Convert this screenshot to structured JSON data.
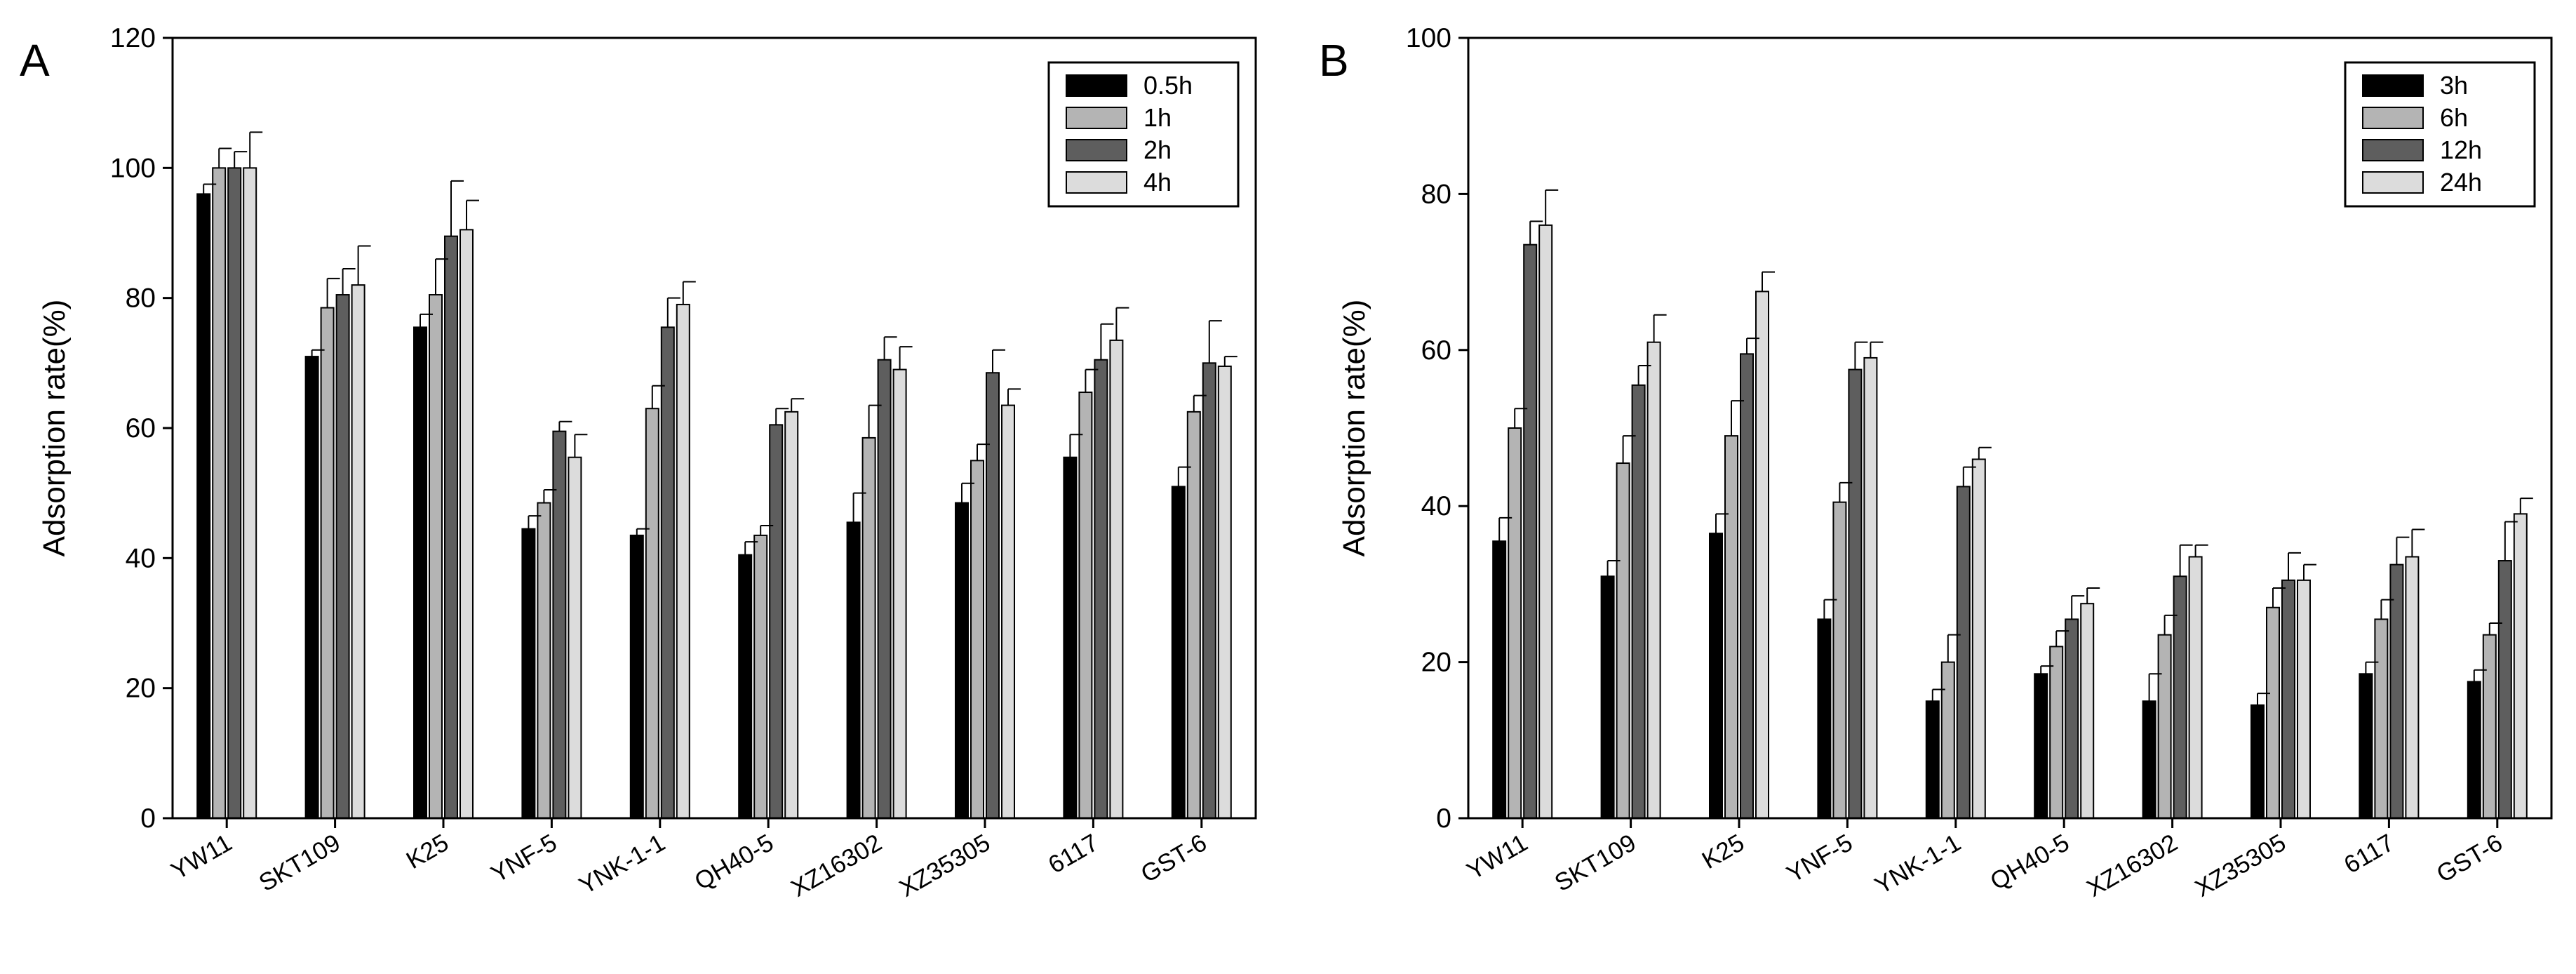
{
  "chart_data": [
    {
      "panel": "A",
      "type": "bar",
      "title": "",
      "xlabel": "",
      "ylabel": "Adsorption rate(%)",
      "ylim": [
        0,
        120
      ],
      "yticks": [
        0,
        20,
        40,
        60,
        80,
        100,
        120
      ],
      "categories": [
        "YW11",
        "SKT109",
        "K25",
        "YNF-5",
        "YNK-1-1",
        "QH40-5",
        "XZ16302",
        "XZ35305",
        "6117",
        "GST-6"
      ],
      "series": [
        {
          "name": "0.5h",
          "color": "#000000",
          "values": [
            96,
            71,
            75.5,
            44.5,
            43.5,
            40.5,
            45.5,
            48.5,
            55.5,
            51
          ],
          "errors": [
            1.5,
            1,
            2,
            2,
            1,
            2,
            4.5,
            3,
            3.5,
            3
          ]
        },
        {
          "name": "1h",
          "color": "#b4b4b4",
          "values": [
            100,
            78.5,
            80.5,
            48.5,
            63,
            43.5,
            58.5,
            55,
            65.5,
            62.5
          ],
          "errors": [
            3,
            4.5,
            5.5,
            2,
            3.5,
            1.5,
            5,
            2.5,
            3.5,
            2.5
          ]
        },
        {
          "name": "2h",
          "color": "#5e5e5e",
          "values": [
            100,
            80.5,
            89.5,
            59.5,
            75.5,
            60.5,
            70.5,
            68.5,
            70.5,
            70
          ],
          "errors": [
            2.5,
            4,
            8.5,
            1.5,
            4.5,
            2.5,
            3.5,
            3.5,
            5.5,
            6.5
          ]
        },
        {
          "name": "4h",
          "color": "#dcdcdc",
          "values": [
            100,
            82,
            90.5,
            55.5,
            79,
            62.5,
            69,
            63.5,
            73.5,
            69.5
          ],
          "errors": [
            5.5,
            6,
            4.5,
            3.5,
            3.5,
            2,
            3.5,
            2.5,
            5,
            1.5
          ]
        }
      ],
      "grid": false,
      "legend": "top-right"
    },
    {
      "panel": "B",
      "type": "bar",
      "title": "",
      "xlabel": "",
      "ylabel": "Adsorption rate(%)",
      "ylim": [
        0,
        100
      ],
      "yticks": [
        0,
        20,
        40,
        60,
        80,
        100
      ],
      "categories": [
        "YW11",
        "SKT109",
        "K25",
        "YNF-5",
        "YNK-1-1",
        "QH40-5",
        "XZ16302",
        "XZ35305",
        "6117",
        "GST-6"
      ],
      "series": [
        {
          "name": "3h",
          "color": "#000000",
          "values": [
            35.5,
            31,
            36.5,
            25.5,
            15,
            18.5,
            15,
            14.5,
            18.5,
            17.5
          ],
          "errors": [
            3,
            2,
            2.5,
            2.5,
            1.5,
            1,
            3.5,
            1.5,
            1.5,
            1.5
          ]
        },
        {
          "name": "6h",
          "color": "#b4b4b4",
          "values": [
            50,
            45.5,
            49,
            40.5,
            20,
            22,
            23.5,
            27,
            25.5,
            23.5
          ],
          "errors": [
            2.5,
            3.5,
            4.5,
            2.5,
            3.5,
            2,
            2.5,
            2.5,
            2.5,
            1.5
          ]
        },
        {
          "name": "12h",
          "color": "#5e5e5e",
          "values": [
            73.5,
            55.5,
            59.5,
            57.5,
            42.5,
            25.5,
            31,
            30.5,
            32.5,
            33
          ],
          "errors": [
            3,
            2.5,
            2,
            3.5,
            2.5,
            3,
            4,
            3.5,
            3.5,
            5
          ]
        },
        {
          "name": "24h",
          "color": "#dcdcdc",
          "values": [
            76,
            61,
            67.5,
            59,
            46,
            27.5,
            33.5,
            30.5,
            33.5,
            39
          ],
          "errors": [
            4.5,
            3.5,
            2.5,
            2,
            1.5,
            2,
            1.5,
            2,
            3.5,
            2
          ]
        }
      ],
      "grid": false,
      "legend": "top-right"
    }
  ]
}
